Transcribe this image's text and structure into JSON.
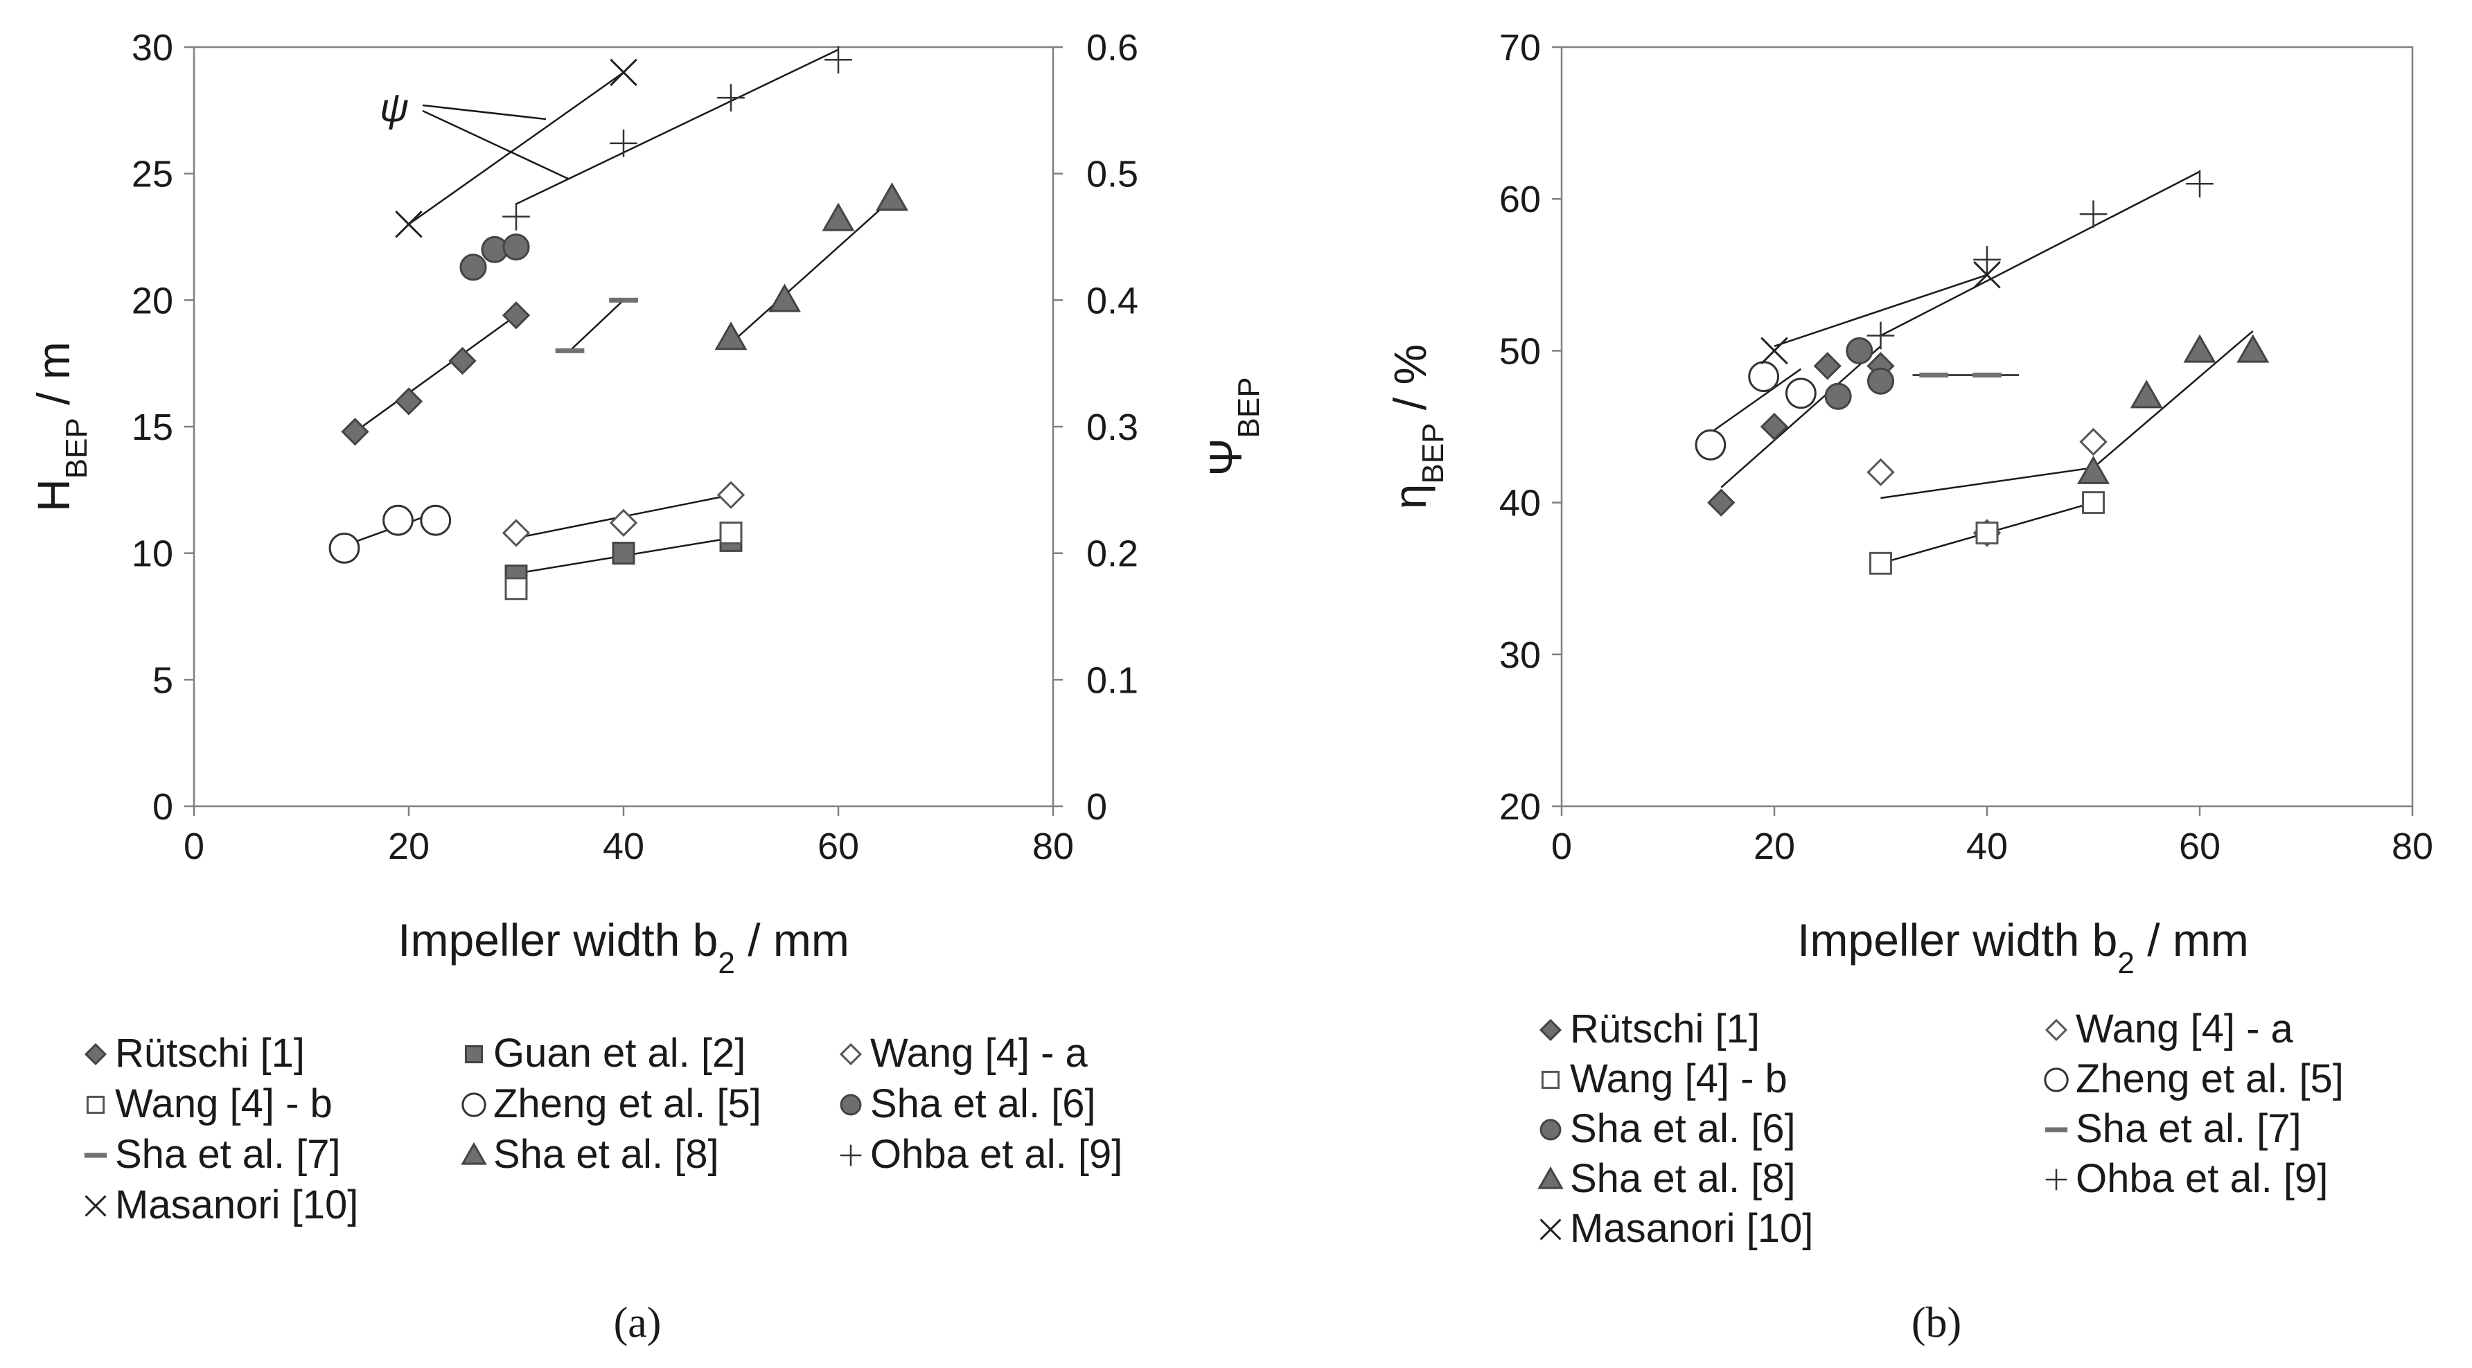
{
  "chart_data": [
    {
      "type": "scatter",
      "panel_label": "(a)",
      "xlabel": "Impeller width b₂ / mm",
      "xlabel_main": "Impeller width b",
      "xlabel_sub": "2",
      "xlabel_rest": " / mm",
      "ylabel_main": "H",
      "ylabel_sub": "BEP",
      "ylabel_rest": " / m",
      "y2label_main": "Ψ",
      "y2label_sub": "BEP",
      "xlim": [
        0,
        80
      ],
      "ylim": [
        0,
        30
      ],
      "y2lim": [
        0,
        0.6
      ],
      "xticks": [
        "0",
        "20",
        "40",
        "60",
        "80"
      ],
      "yticks": [
        "0",
        "5",
        "10",
        "15",
        "20",
        "25",
        "30"
      ],
      "y2ticks": [
        "0",
        "0.1",
        "0.2",
        "0.3",
        "0.4",
        "0.5",
        "0.6"
      ],
      "annotation": "ψ",
      "series": [
        {
          "name": "Rütschi [1]",
          "marker": "diamond-filled",
          "x": [
            15,
            20,
            25,
            30
          ],
          "y": [
            14.8,
            16.0,
            17.6,
            19.4
          ],
          "trend": [
            [
              15,
              14.8
            ],
            [
              30,
              19.4
            ]
          ]
        },
        {
          "name": "Guan et al. [2]",
          "marker": "square-filled",
          "x": [
            30,
            40,
            50
          ],
          "y": [
            9.1,
            10.0,
            10.5
          ],
          "trend": [
            [
              30,
              9.2
            ],
            [
              50,
              10.6
            ]
          ]
        },
        {
          "name": "Wang [4] - a",
          "marker": "diamond-open",
          "x": [
            30,
            40,
            50
          ],
          "y": [
            10.8,
            11.2,
            12.3
          ],
          "trend": [
            [
              30,
              10.6
            ],
            [
              50,
              12.3
            ]
          ]
        },
        {
          "name": "Wang [4] - b",
          "marker": "square-open",
          "x": [
            30,
            50
          ],
          "y": [
            8.6,
            10.8
          ],
          "trend": []
        },
        {
          "name": "Zheng et al. [5]",
          "marker": "circle-open",
          "x": [
            14,
            19,
            22.5
          ],
          "y": [
            10.2,
            11.3,
            11.3
          ],
          "trend": [
            [
              14,
              10.3
            ],
            [
              22.5,
              11.6
            ]
          ]
        },
        {
          "name": "Sha et al. [6]",
          "marker": "circle-filled",
          "x": [
            26,
            28,
            30
          ],
          "y": [
            21.3,
            22.0,
            22.1
          ],
          "trend": []
        },
        {
          "name": "Sha et al. [7]",
          "marker": "dash",
          "x": [
            35,
            40
          ],
          "y": [
            18.0,
            20.0
          ],
          "trend": [
            [
              35,
              18.0
            ],
            [
              40,
              20.0
            ]
          ]
        },
        {
          "name": "Sha et al. [8]",
          "marker": "triangle-filled",
          "x": [
            50,
            55,
            60,
            65
          ],
          "y": [
            18.5,
            20.0,
            23.2,
            24.0
          ],
          "trend": [
            [
              50,
              18.3
            ],
            [
              65,
              24.0
            ]
          ]
        },
        {
          "name": "Ohba et al. [9]",
          "marker": "plus",
          "x": [
            30,
            40,
            50,
            60
          ],
          "y": [
            23.3,
            26.2,
            28.0,
            29.5
          ],
          "trend": [
            [
              30,
              23.8
            ],
            [
              60,
              29.9
            ]
          ]
        },
        {
          "name": "Masanori [10]",
          "marker": "cross",
          "x": [
            20,
            40
          ],
          "y": [
            23.0,
            29.0
          ],
          "trend": [
            [
              20,
              23.0
            ],
            [
              40,
              29.0
            ]
          ]
        }
      ]
    },
    {
      "type": "scatter",
      "panel_label": "(b)",
      "xlabel": "Impeller width b₂ / mm",
      "xlabel_main": "Impeller width b",
      "xlabel_sub": "2",
      "xlabel_rest": " / mm",
      "ylabel_main": "η",
      "ylabel_sub": "BEP",
      "ylabel_rest": " / %",
      "xlim": [
        0,
        80
      ],
      "ylim": [
        20,
        70
      ],
      "xticks": [
        "0",
        "20",
        "40",
        "60",
        "80"
      ],
      "yticks": [
        "20",
        "30",
        "40",
        "50",
        "60",
        "70"
      ],
      "series": [
        {
          "name": "Rütschi [1]",
          "marker": "diamond-filled",
          "x": [
            15,
            20,
            25,
            30
          ],
          "y": [
            40.0,
            45.0,
            49.0,
            49.0
          ],
          "trend": [
            [
              15,
              41.0
            ],
            [
              30,
              50.3
            ]
          ]
        },
        {
          "name": "Wang [4] - a",
          "marker": "diamond-open",
          "x": [
            30,
            40,
            50
          ],
          "y": [
            42.0,
            38.0,
            44.0
          ],
          "trend": [
            [
              30,
              40.3
            ],
            [
              50,
              42.3
            ]
          ]
        },
        {
          "name": "Wang [4] - b",
          "marker": "square-open",
          "x": [
            30,
            40,
            50
          ],
          "y": [
            36.0,
            38.0,
            40.0
          ],
          "trend": [
            [
              30,
              36.0
            ],
            [
              50,
              40.0
            ]
          ]
        },
        {
          "name": "Zheng et al. [5]",
          "marker": "circle-open",
          "x": [
            14,
            19,
            22.5
          ],
          "y": [
            43.8,
            48.3,
            47.2
          ],
          "trend": [
            [
              14,
              44.6
            ],
            [
              22.5,
              48.8
            ]
          ]
        },
        {
          "name": "Sha et al. [6]",
          "marker": "circle-filled",
          "x": [
            26,
            28,
            30
          ],
          "y": [
            47.0,
            50.0,
            48.0
          ],
          "trend": []
        },
        {
          "name": "Sha et al. [7]",
          "marker": "dash",
          "x": [
            35,
            40
          ],
          "y": [
            48.4,
            48.4
          ],
          "trend": [
            [
              33,
              48.4
            ],
            [
              43,
              48.4
            ]
          ]
        },
        {
          "name": "Sha et al. [8]",
          "marker": "triangle-filled",
          "x": [
            50,
            55,
            60,
            65
          ],
          "y": [
            42.0,
            47.0,
            50.0,
            50.0
          ],
          "trend": [
            [
              50,
              42.3
            ],
            [
              65,
              51.3
            ]
          ]
        },
        {
          "name": "Ohba et al. [9]",
          "marker": "plus",
          "x": [
            30,
            40,
            50,
            60
          ],
          "y": [
            51.0,
            56.0,
            59.0,
            61.0
          ],
          "trend": [
            [
              30,
              51.0
            ],
            [
              60,
              61.8
            ]
          ]
        },
        {
          "name": "Masanori [10]",
          "marker": "cross",
          "x": [
            20,
            40
          ],
          "y": [
            50.0,
            55.0
          ],
          "trend": [
            [
              20,
              50.3
            ],
            [
              40,
              55.0
            ]
          ]
        }
      ]
    }
  ],
  "legend_a": [
    "Rütschi [1]",
    "Guan et al. [2]",
    "Wang [4] - a",
    "Wang [4] - b",
    "Zheng et al. [5]",
    "Sha et al. [6]",
    "Sha et al. [7]",
    "Sha et al. [8]",
    "Ohba et al. [9]",
    "Masanori [10]"
  ],
  "legend_b": [
    "Rütschi [1]",
    "Wang [4] - a",
    "Wang [4] - b",
    "Zheng et al. [5]",
    "Sha et al. [6]",
    "Sha et al. [7]",
    "Sha et al. [8]",
    "Ohba et al. [9]",
    "Masanori [10]"
  ],
  "colors": {
    "axis": "#808080",
    "line": "#1a1a1a",
    "fill": "#6e6e6e",
    "open": "#ffffff"
  }
}
